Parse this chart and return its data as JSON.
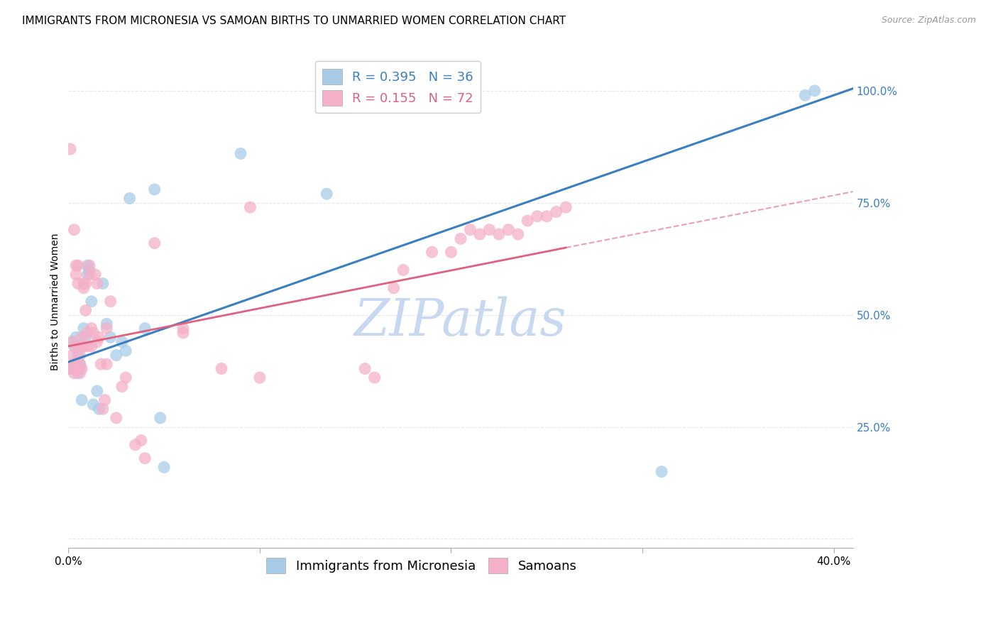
{
  "title": "IMMIGRANTS FROM MICRONESIA VS SAMOAN BIRTHS TO UNMARRIED WOMEN CORRELATION CHART",
  "source": "Source: ZipAtlas.com",
  "ylabel": "Births to Unmarried Women",
  "legend_label1": "Immigrants from Micronesia",
  "legend_label2": "Samoans",
  "legend_r1": "R = 0.395",
  "legend_n1": "N = 36",
  "legend_r2": "R = 0.155",
  "legend_n2": "N = 72",
  "xlim": [
    0.0,
    0.41
  ],
  "ylim": [
    -0.02,
    1.08
  ],
  "color_blue": "#a8cce8",
  "color_pink": "#f4b0c8",
  "line_blue": "#3a7fc1",
  "line_pink": "#e06080",
  "watermark": "ZIPatlas",
  "watermark_color": "#c8d8f0",
  "blue_scatter_x": [
    0.001,
    0.002,
    0.003,
    0.003,
    0.004,
    0.004,
    0.005,
    0.005,
    0.006,
    0.006,
    0.007,
    0.008,
    0.009,
    0.01,
    0.01,
    0.011,
    0.012,
    0.013,
    0.015,
    0.016,
    0.018,
    0.02,
    0.022,
    0.025,
    0.028,
    0.03,
    0.032,
    0.04,
    0.045,
    0.048,
    0.05,
    0.09,
    0.135,
    0.31,
    0.385,
    0.39
  ],
  "blue_scatter_y": [
    0.38,
    0.44,
    0.39,
    0.43,
    0.45,
    0.38,
    0.41,
    0.37,
    0.39,
    0.38,
    0.31,
    0.47,
    0.45,
    0.61,
    0.59,
    0.6,
    0.53,
    0.3,
    0.33,
    0.29,
    0.57,
    0.48,
    0.45,
    0.41,
    0.44,
    0.42,
    0.76,
    0.47,
    0.78,
    0.27,
    0.16,
    0.86,
    0.77,
    0.15,
    0.99,
    1.0
  ],
  "pink_scatter_x": [
    0.001,
    0.001,
    0.002,
    0.002,
    0.003,
    0.003,
    0.003,
    0.003,
    0.004,
    0.004,
    0.004,
    0.005,
    0.005,
    0.005,
    0.006,
    0.006,
    0.006,
    0.007,
    0.007,
    0.007,
    0.008,
    0.008,
    0.008,
    0.009,
    0.009,
    0.01,
    0.01,
    0.011,
    0.011,
    0.012,
    0.012,
    0.013,
    0.014,
    0.015,
    0.015,
    0.016,
    0.017,
    0.018,
    0.019,
    0.02,
    0.02,
    0.022,
    0.025,
    0.028,
    0.03,
    0.035,
    0.038,
    0.04,
    0.045,
    0.06,
    0.06,
    0.08,
    0.095,
    0.1,
    0.155,
    0.16,
    0.17,
    0.175,
    0.19,
    0.2,
    0.205,
    0.21,
    0.215,
    0.22,
    0.225,
    0.23,
    0.235,
    0.24,
    0.245,
    0.25,
    0.255,
    0.26
  ],
  "pink_scatter_y": [
    0.38,
    0.87,
    0.41,
    0.44,
    0.69,
    0.37,
    0.39,
    0.38,
    0.61,
    0.59,
    0.43,
    0.61,
    0.57,
    0.38,
    0.39,
    0.37,
    0.41,
    0.38,
    0.43,
    0.45,
    0.57,
    0.56,
    0.43,
    0.51,
    0.57,
    0.46,
    0.43,
    0.61,
    0.59,
    0.47,
    0.43,
    0.46,
    0.59,
    0.57,
    0.44,
    0.45,
    0.39,
    0.29,
    0.31,
    0.39,
    0.47,
    0.53,
    0.27,
    0.34,
    0.36,
    0.21,
    0.22,
    0.18,
    0.66,
    0.47,
    0.46,
    0.38,
    0.74,
    0.36,
    0.38,
    0.36,
    0.56,
    0.6,
    0.64,
    0.64,
    0.67,
    0.69,
    0.68,
    0.69,
    0.68,
    0.69,
    0.68,
    0.71,
    0.72,
    0.72,
    0.73,
    0.74
  ],
  "blue_line_x0": 0.0,
  "blue_line_x1": 0.41,
  "blue_line_y0": 0.395,
  "blue_line_y1": 1.005,
  "pink_line_solid_x0": 0.0,
  "pink_line_solid_x1": 0.26,
  "pink_line_solid_y0": 0.43,
  "pink_line_solid_y1": 0.65,
  "pink_line_dash_x0": 0.26,
  "pink_line_dash_x1": 0.41,
  "pink_line_dash_y0": 0.65,
  "pink_line_dash_y1": 0.775,
  "grid_color": "#e8e8e8",
  "background_color": "#ffffff",
  "title_fontsize": 11,
  "axis_label_fontsize": 10,
  "tick_fontsize": 11,
  "watermark_fontsize": 52,
  "legend_fontsize": 13,
  "source_fontsize": 9
}
